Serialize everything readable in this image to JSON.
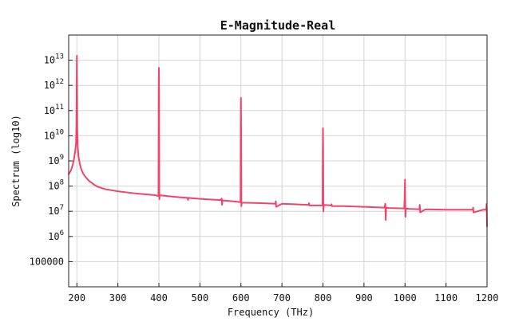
{
  "chart_data": {
    "type": "line",
    "title": "E-Magnitude-Real",
    "xlabel": "Frequency (THz)",
    "ylabel": "Spectrum (log10)",
    "xlim": [
      180,
      1200
    ],
    "ylim": [
      10000,
      100000000000000
    ],
    "yscale": "log",
    "grid": true,
    "x_ticks": [
      {
        "value": 200,
        "label": "200"
      },
      {
        "value": 300,
        "label": "300"
      },
      {
        "value": 400,
        "label": "400"
      },
      {
        "value": 500,
        "label": "500"
      },
      {
        "value": 600,
        "label": "600"
      },
      {
        "value": 700,
        "label": "700"
      },
      {
        "value": 800,
        "label": "800"
      },
      {
        "value": 900,
        "label": "900"
      },
      {
        "value": 1000,
        "label": "1000"
      },
      {
        "value": 1100,
        "label": "1100"
      },
      {
        "value": 1200,
        "label": "1200"
      }
    ],
    "y_ticks": [
      {
        "value": 100000,
        "base": "100000",
        "exp": ""
      },
      {
        "value": 1000000,
        "base": "10",
        "exp": "6"
      },
      {
        "value": 10000000,
        "base": "10",
        "exp": "7"
      },
      {
        "value": 100000000,
        "base": "10",
        "exp": "8"
      },
      {
        "value": 1000000000,
        "base": "10",
        "exp": "9"
      },
      {
        "value": 10000000000,
        "base": "10",
        "exp": "10"
      },
      {
        "value": 100000000000,
        "base": "10",
        "exp": "11"
      },
      {
        "value": 1000000000000,
        "base": "10",
        "exp": "12"
      },
      {
        "value": 10000000000000,
        "base": "10",
        "exp": "13"
      }
    ],
    "series": [
      {
        "color": "#f0446a",
        "x": [
          180,
          185,
          190,
          193,
          196,
          198,
          199,
          199.5,
          200,
          200.5,
          201,
          202,
          204,
          207,
          210,
          215,
          220,
          230,
          240,
          250,
          270,
          300,
          330,
          360,
          390,
          399,
          399.5,
          400,
          400.5,
          401,
          402,
          420,
          450,
          470,
          471,
          472,
          500,
          550,
          553,
          554,
          555,
          580,
          599,
          599.5,
          600,
          600.5,
          601,
          602,
          650,
          684,
          685,
          686,
          700,
          730,
          765,
          766,
          767,
          799,
          799.5,
          800,
          800.5,
          801,
          802,
          820,
          821,
          822,
          850,
          900,
          950,
          952,
          953,
          954,
          960,
          998,
          999,
          1000,
          1001,
          1002,
          1010,
          1035,
          1036,
          1037,
          1050,
          1100,
          1150,
          1165,
          1166,
          1167,
          1190,
          1198,
          1199,
          1200
        ],
        "y": [
          300000000,
          400000000,
          700000000,
          1200000000,
          2500000000,
          5000000000,
          30000000000,
          1000000000000,
          15000000000000,
          1000000000000,
          20000000000,
          4000000000,
          1500000000,
          800000000,
          500000000,
          320000000,
          240000000,
          160000000,
          120000000,
          95000000,
          75000000,
          62000000,
          54000000,
          48000000,
          44000000,
          40000000,
          500000000000,
          5000000000000,
          400000000000,
          30000000,
          43000000,
          40000000,
          36000000,
          34000000,
          28000000,
          34000000,
          31000000,
          28000000,
          32000000,
          18000000,
          27000000,
          25000000,
          23000000,
          30000000000,
          320000000000,
          15000000000,
          16000000,
          22000000,
          21000000,
          20000000,
          25000000,
          15000000,
          20000000,
          19000000,
          18000000,
          21000000,
          17000000,
          17000000,
          2000000000,
          20000000000,
          2000000000,
          10000000,
          18000000,
          17000000,
          19000000,
          16000000,
          16000000,
          15000000,
          14000000,
          20000000,
          4500000,
          14000000,
          13500000,
          13000000,
          30000000,
          180000000,
          6000000,
          13000000,
          12500000,
          12000000,
          18000000,
          9000000,
          12000000,
          11500000,
          11500000,
          11500000,
          14000000,
          9000000,
          11500000,
          11500000,
          20000000,
          2500000
        ]
      }
    ]
  }
}
